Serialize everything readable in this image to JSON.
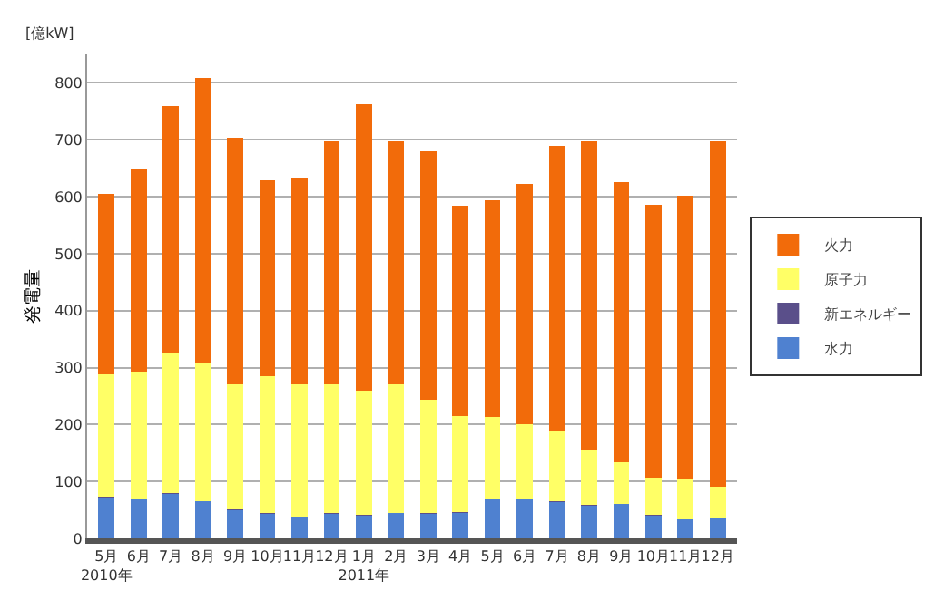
{
  "chart_data": {
    "type": "bar",
    "stacked": true,
    "ylabel": "発電量",
    "annotations": [
      "[億kW]"
    ],
    "categories": [
      "5月\n2010年",
      "6月",
      "7月",
      "8月",
      "9月",
      "10月",
      "11月",
      "12月",
      "1月\n2011年",
      "2月",
      "3月",
      "4月",
      "5月",
      "6月",
      "7月",
      "8月",
      "9月",
      "10月",
      "11月",
      "12月"
    ],
    "series": [
      {
        "name": "水力",
        "color": "#4f81d0",
        "values": [
          72,
          68,
          78,
          65,
          50,
          43,
          38,
          43,
          40,
          44,
          43,
          45,
          68,
          68,
          64,
          58,
          60,
          40,
          33,
          35
        ]
      },
      {
        "name": "新エネルギー",
        "color": "#5a4f8a",
        "values": [
          1,
          1,
          1,
          1,
          1,
          1,
          1,
          1,
          1,
          1,
          1,
          1,
          1,
          1,
          1,
          1,
          1,
          1,
          1,
          1
        ]
      },
      {
        "name": "原子力",
        "color": "#ffff66",
        "values": [
          215,
          224,
          248,
          242,
          219,
          241,
          231,
          226,
          219,
          225,
          199,
          169,
          144,
          131,
          125,
          97,
          72,
          66,
          70,
          55
        ]
      },
      {
        "name": "火力",
        "color": "#f26b0a",
        "values": [
          317,
          357,
          433,
          500,
          433,
          343,
          363,
          427,
          503,
          427,
          437,
          369,
          380,
          422,
          499,
          541,
          492,
          478,
          497,
          606
        ]
      }
    ],
    "ylim": [
      0,
      850
    ],
    "yticks": [
      0,
      100,
      200,
      300,
      400,
      500,
      600,
      700,
      800
    ],
    "grid": "y",
    "legend": "right"
  }
}
